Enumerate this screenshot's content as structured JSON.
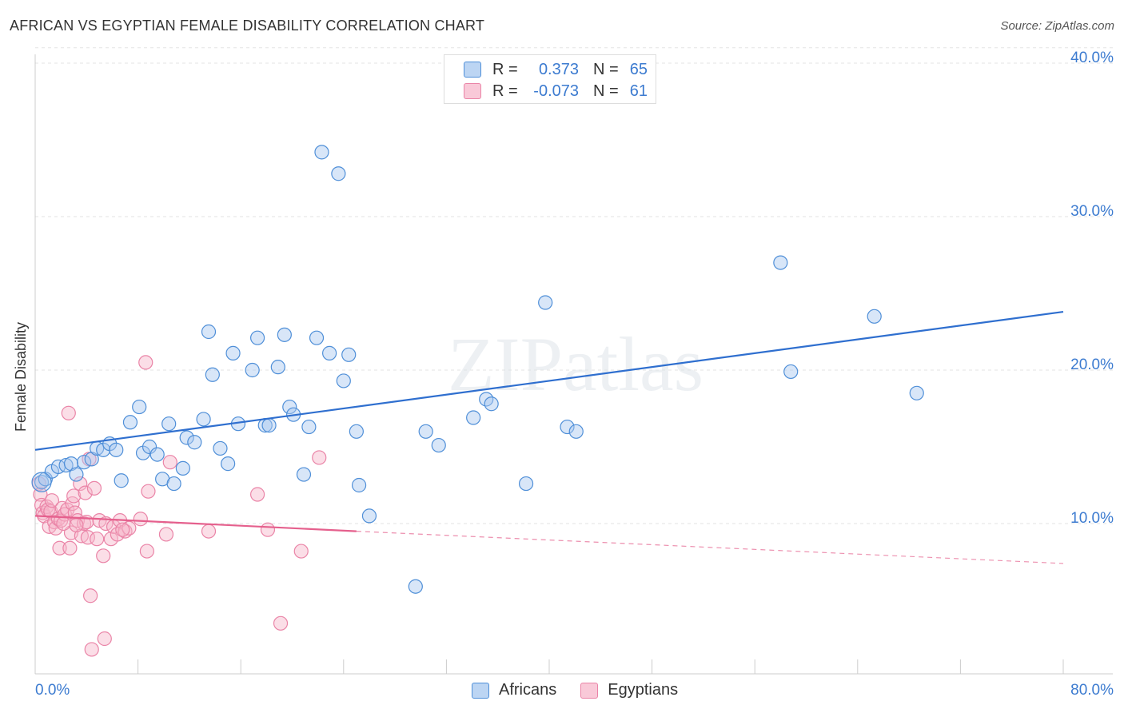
{
  "title": "AFRICAN VS EGYPTIAN FEMALE DISABILITY CORRELATION CHART",
  "source": "Source: ZipAtlas.com",
  "watermark": "ZIPatlas",
  "legend": {
    "rows": [
      {
        "r_label": "R =",
        "r_value": "0.373",
        "n_label": "N =",
        "n_value": "65"
      },
      {
        "r_label": "R =",
        "r_value": "-0.073",
        "n_label": "N =",
        "n_value": "61"
      }
    ]
  },
  "bottom_legend": [
    "Africans",
    "Egyptians"
  ],
  "colors": {
    "africans_fill": "#a9c8ef",
    "africans_stroke": "#4f8fd8",
    "africans_line": "#2f6fcf",
    "egyptians_fill": "#f6b6ca",
    "egyptians_stroke": "#ea84a7",
    "egyptians_line": "#e5608d",
    "tick_label": "#3c7bd0"
  },
  "chart_data": {
    "type": "scatter",
    "title": "AFRICAN VS EGYPTIAN FEMALE DISABILITY CORRELATION CHART",
    "xlabel": "",
    "ylabel": "Female Disability",
    "xlim": [
      0,
      80
    ],
    "ylim": [
      0,
      41
    ],
    "x_tick_labels": [
      "0.0%",
      "80.0%"
    ],
    "y_ticks": [
      10,
      20,
      30,
      40
    ],
    "y_tick_labels": [
      "10.0%",
      "20.0%",
      "30.0%",
      "40.0%"
    ],
    "grid": true,
    "series": [
      {
        "name": "Africans",
        "r": 0.373,
        "n": 65,
        "trend": {
          "x0": 0,
          "y0": 14.8,
          "x1": 80,
          "y1": 23.8
        },
        "points": [
          [
            0.5,
            12.7
          ],
          [
            0.8,
            12.9
          ],
          [
            1.3,
            13.4
          ],
          [
            1.8,
            13.7
          ],
          [
            2.4,
            13.8
          ],
          [
            2.8,
            13.9
          ],
          [
            3.2,
            13.2
          ],
          [
            3.8,
            14.0
          ],
          [
            4.4,
            14.2
          ],
          [
            4.8,
            14.9
          ],
          [
            5.3,
            14.8
          ],
          [
            5.8,
            15.2
          ],
          [
            6.3,
            14.8
          ],
          [
            6.7,
            12.8
          ],
          [
            7.4,
            16.6
          ],
          [
            8.1,
            17.6
          ],
          [
            8.4,
            14.6
          ],
          [
            8.9,
            15.0
          ],
          [
            9.5,
            14.5
          ],
          [
            9.9,
            12.9
          ],
          [
            10.4,
            16.5
          ],
          [
            10.8,
            12.6
          ],
          [
            11.5,
            13.6
          ],
          [
            11.8,
            15.6
          ],
          [
            12.4,
            15.3
          ],
          [
            13.1,
            16.8
          ],
          [
            13.5,
            22.5
          ],
          [
            13.8,
            19.7
          ],
          [
            14.4,
            14.9
          ],
          [
            15.0,
            13.9
          ],
          [
            15.4,
            21.1
          ],
          [
            15.8,
            16.5
          ],
          [
            16.9,
            20.0
          ],
          [
            17.3,
            22.1
          ],
          [
            17.9,
            16.4
          ],
          [
            18.2,
            16.4
          ],
          [
            18.9,
            20.2
          ],
          [
            19.4,
            22.3
          ],
          [
            19.8,
            17.6
          ],
          [
            20.1,
            17.1
          ],
          [
            20.9,
            13.2
          ],
          [
            21.3,
            16.3
          ],
          [
            21.9,
            22.1
          ],
          [
            22.9,
            21.1
          ],
          [
            24.0,
            19.3
          ],
          [
            24.4,
            21.0
          ],
          [
            25.0,
            16.0
          ],
          [
            25.2,
            12.5
          ],
          [
            26.0,
            10.5
          ],
          [
            22.3,
            34.2
          ],
          [
            23.6,
            32.8
          ],
          [
            29.6,
            5.9
          ],
          [
            30.4,
            16.0
          ],
          [
            31.4,
            15.1
          ],
          [
            34.1,
            16.9
          ],
          [
            35.1,
            18.1
          ],
          [
            35.5,
            17.8
          ],
          [
            38.2,
            12.6
          ],
          [
            39.7,
            24.4
          ],
          [
            41.4,
            16.3
          ],
          [
            42.1,
            16.0
          ],
          [
            58.0,
            27.0
          ],
          [
            58.8,
            19.9
          ],
          [
            65.3,
            23.5
          ],
          [
            68.6,
            18.5
          ]
        ]
      },
      {
        "name": "Egyptians",
        "r": -0.073,
        "n": 61,
        "trend": {
          "x0": 0,
          "y0": 10.5,
          "x1": 25,
          "y1": 9.5,
          "dash_x1": 80,
          "dash_y1": 7.4
        },
        "points": [
          [
            0.3,
            12.6
          ],
          [
            0.4,
            11.9
          ],
          [
            0.5,
            11.2
          ],
          [
            0.6,
            10.7
          ],
          [
            0.7,
            10.5
          ],
          [
            0.9,
            11.1
          ],
          [
            1.0,
            10.9
          ],
          [
            1.1,
            9.8
          ],
          [
            1.2,
            10.8
          ],
          [
            1.3,
            11.5
          ],
          [
            1.5,
            10.1
          ],
          [
            1.6,
            9.7
          ],
          [
            1.8,
            10.3
          ],
          [
            1.9,
            8.4
          ],
          [
            2.0,
            10.2
          ],
          [
            2.1,
            11.0
          ],
          [
            2.3,
            10.6
          ],
          [
            2.5,
            10.9
          ],
          [
            2.6,
            17.2
          ],
          [
            2.7,
            8.4
          ],
          [
            2.8,
            9.4
          ],
          [
            2.9,
            11.3
          ],
          [
            3.0,
            11.8
          ],
          [
            3.1,
            10.7
          ],
          [
            3.3,
            10.2
          ],
          [
            3.5,
            12.6
          ],
          [
            3.6,
            9.2
          ],
          [
            3.8,
            10.0
          ],
          [
            3.9,
            12.0
          ],
          [
            4.1,
            9.1
          ],
          [
            4.2,
            14.2
          ],
          [
            4.3,
            5.3
          ],
          [
            4.4,
            1.8
          ],
          [
            4.6,
            12.3
          ],
          [
            4.8,
            9.0
          ],
          [
            5.0,
            10.2
          ],
          [
            5.3,
            7.9
          ],
          [
            5.4,
            2.5
          ],
          [
            5.5,
            10.0
          ],
          [
            5.9,
            9.0
          ],
          [
            6.1,
            9.8
          ],
          [
            6.4,
            9.3
          ],
          [
            6.6,
            10.2
          ],
          [
            7.0,
            9.5
          ],
          [
            7.3,
            9.7
          ],
          [
            8.2,
            10.3
          ],
          [
            8.6,
            20.5
          ],
          [
            8.7,
            8.2
          ],
          [
            8.8,
            12.1
          ],
          [
            10.2,
            9.3
          ],
          [
            10.5,
            14.0
          ],
          [
            13.5,
            9.5
          ],
          [
            17.3,
            11.9
          ],
          [
            18.1,
            9.6
          ],
          [
            19.1,
            3.5
          ],
          [
            20.7,
            8.2
          ],
          [
            22.1,
            14.3
          ],
          [
            4.0,
            10.1
          ],
          [
            3.2,
            9.9
          ],
          [
            6.8,
            9.6
          ],
          [
            2.2,
            10.0
          ]
        ]
      }
    ]
  }
}
